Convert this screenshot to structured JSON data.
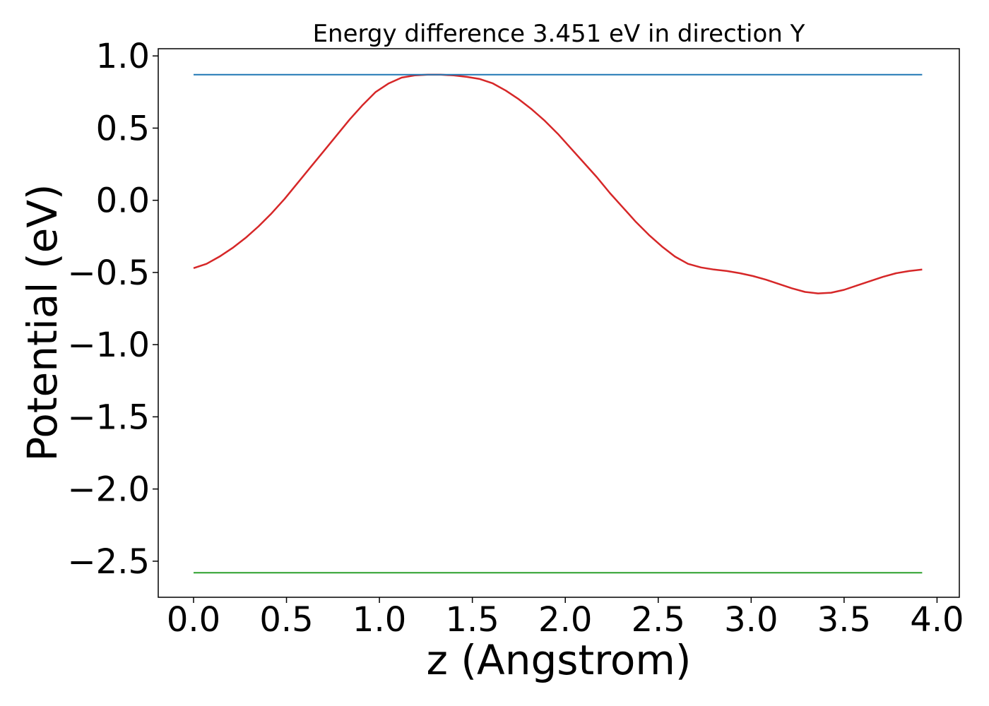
{
  "chart_data": {
    "type": "line",
    "title": "Energy difference 3.451 eV in direction Y",
    "xlabel": "z (Angstrom)",
    "ylabel": "Potential (eV)",
    "xlim": [
      -0.19,
      4.12
    ],
    "ylim": [
      -2.75,
      1.05
    ],
    "xticks": [
      0.0,
      0.5,
      1.0,
      1.5,
      2.0,
      2.5,
      3.0,
      3.5,
      4.0
    ],
    "xtick_labels": [
      "0.0",
      "0.5",
      "1.0",
      "1.5",
      "2.0",
      "2.5",
      "3.0",
      "3.5",
      "4.0"
    ],
    "yticks": [
      1.0,
      0.5,
      0.0,
      -0.5,
      -1.0,
      -1.5,
      -2.0,
      -2.5
    ],
    "ytick_labels": [
      "1.0",
      "0.5",
      "0.0",
      "−0.5",
      "−1.0",
      "−1.5",
      "−2.0",
      "−2.5"
    ],
    "grid": false,
    "series": [
      {
        "color": "#d62728",
        "x": [
          0.0,
          0.07,
          0.14,
          0.21,
          0.28,
          0.35,
          0.42,
          0.49,
          0.56,
          0.63,
          0.7,
          0.77,
          0.84,
          0.91,
          0.98,
          1.05,
          1.12,
          1.19,
          1.26,
          1.33,
          1.4,
          1.47,
          1.54,
          1.61,
          1.68,
          1.75,
          1.82,
          1.89,
          1.96,
          2.03,
          2.1,
          2.17,
          2.24,
          2.31,
          2.38,
          2.45,
          2.52,
          2.59,
          2.66,
          2.73,
          2.8,
          2.87,
          2.94,
          3.01,
          3.08,
          3.15,
          3.22,
          3.29,
          3.36,
          3.43,
          3.5,
          3.57,
          3.64,
          3.71,
          3.78,
          3.85,
          3.92
        ],
        "values": [
          -0.47,
          -0.44,
          -0.39,
          -0.33,
          -0.26,
          -0.18,
          -0.09,
          0.01,
          0.12,
          0.23,
          0.34,
          0.45,
          0.56,
          0.66,
          0.75,
          0.81,
          0.85,
          0.865,
          0.87,
          0.87,
          0.865,
          0.855,
          0.84,
          0.81,
          0.76,
          0.7,
          0.63,
          0.55,
          0.46,
          0.36,
          0.26,
          0.16,
          0.05,
          -0.05,
          -0.15,
          -0.24,
          -0.32,
          -0.39,
          -0.44,
          -0.465,
          -0.48,
          -0.49,
          -0.505,
          -0.525,
          -0.55,
          -0.58,
          -0.61,
          -0.635,
          -0.645,
          -0.64,
          -0.62,
          -0.59,
          -0.56,
          -0.53,
          -0.505,
          -0.49,
          -0.48
        ]
      },
      {
        "color": "#1f77b4",
        "x": [
          0.0,
          3.92
        ],
        "values": [
          0.87,
          0.87
        ]
      },
      {
        "color": "#2ca02c",
        "x": [
          0.0,
          3.92
        ],
        "values": [
          -2.58,
          -2.58
        ]
      }
    ]
  }
}
